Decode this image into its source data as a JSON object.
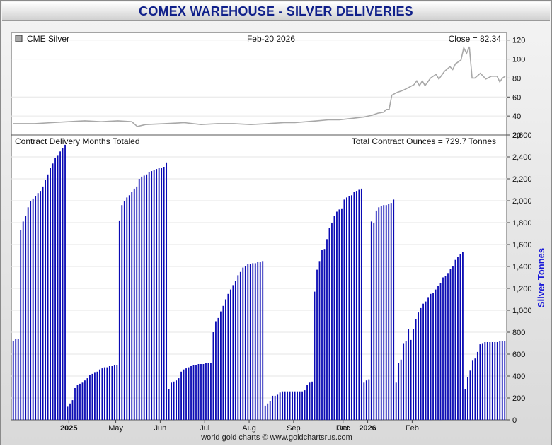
{
  "header": {
    "title": "COMEX WAREHOUSE - SILVER DELIVERIES"
  },
  "footer": {
    "credit": "world gold charts © www.goldchartsrus.com"
  },
  "colors": {
    "bar": "#0a0ab4",
    "price_line": "#a8a8a8",
    "title": "#10208a",
    "ylabel": "#1818d8"
  },
  "chart_data": [
    {
      "type": "line",
      "legend": "CME Silver",
      "date_label": "Feb-20  2026",
      "close_label": "Close = 82.34",
      "yticks": [
        20,
        40,
        60,
        80,
        100,
        120
      ],
      "ylim": [
        20,
        128
      ],
      "x_index_range": [
        0,
        174
      ],
      "grid": true,
      "points": [
        [
          0,
          32
        ],
        [
          8,
          32
        ],
        [
          14,
          33
        ],
        [
          20,
          34
        ],
        [
          26,
          35
        ],
        [
          32,
          34
        ],
        [
          38,
          35
        ],
        [
          43,
          34
        ],
        [
          45,
          29
        ],
        [
          48,
          31
        ],
        [
          55,
          32
        ],
        [
          62,
          33
        ],
        [
          68,
          31
        ],
        [
          74,
          32
        ],
        [
          80,
          32
        ],
        [
          86,
          31
        ],
        [
          92,
          32
        ],
        [
          98,
          33
        ],
        [
          102,
          33
        ],
        [
          106,
          34
        ],
        [
          110,
          35
        ],
        [
          114,
          36
        ],
        [
          118,
          36
        ],
        [
          121,
          37
        ],
        [
          124,
          38
        ],
        [
          127,
          39
        ],
        [
          130,
          41
        ],
        [
          132,
          43
        ],
        [
          134,
          44
        ],
        [
          135,
          47
        ],
        [
          136,
          47
        ],
        [
          137,
          62
        ],
        [
          139,
          65
        ],
        [
          141,
          67
        ],
        [
          143,
          70
        ],
        [
          145,
          73
        ],
        [
          146,
          77
        ],
        [
          147,
          72
        ],
        [
          148,
          77
        ],
        [
          149,
          72
        ],
        [
          151,
          80
        ],
        [
          153,
          84
        ],
        [
          154,
          79
        ],
        [
          156,
          87
        ],
        [
          158,
          92
        ],
        [
          159,
          89
        ],
        [
          160,
          95
        ],
        [
          162,
          99
        ],
        [
          163,
          112
        ],
        [
          164,
          106
        ],
        [
          165,
          113
        ],
        [
          166,
          80
        ],
        [
          167,
          80
        ],
        [
          169,
          85
        ],
        [
          171,
          79
        ],
        [
          173,
          82
        ],
        [
          175,
          82
        ],
        [
          176,
          76
        ],
        [
          177,
          80
        ],
        [
          178,
          82
        ]
      ]
    },
    {
      "type": "bar",
      "title": "Contract Delivery Months Totaled",
      "total_label": "Total Contract Ounces = 729.7 Tonnes",
      "ylabel": "Silver Tonnes",
      "ylim": [
        0,
        2600
      ],
      "yticks": [
        0,
        200,
        400,
        600,
        800,
        "1,000",
        "1,200",
        "1,400",
        "1,600",
        "1,800",
        "2,000",
        "2,200",
        "2,400",
        "2,600"
      ],
      "x_month_ticks": [
        {
          "label": "2025",
          "index": 23,
          "bold": true
        },
        {
          "label": "May",
          "index": 42,
          "bold": false
        },
        {
          "label": "Jun",
          "index": 60,
          "bold": false
        },
        {
          "label": "Jul",
          "index": 78,
          "bold": false
        },
        {
          "label": "Aug",
          "index": 96,
          "bold": false
        },
        {
          "label": "Sep",
          "index": 114,
          "bold": false
        },
        {
          "label": "Oct",
          "index": 134,
          "bold": false
        },
        {
          "label": "Dec",
          "index": 134,
          "bold": false
        },
        {
          "label": "2026",
          "index": 144,
          "bold": true
        },
        {
          "label": "Feb",
          "index": 162,
          "bold": false
        }
      ],
      "grid": true,
      "values": [
        720,
        740,
        740,
        1730,
        1810,
        1860,
        1940,
        2000,
        2020,
        2040,
        2070,
        2090,
        2130,
        2190,
        2240,
        2300,
        2340,
        2390,
        2410,
        2450,
        2480,
        2510,
        120,
        150,
        180,
        290,
        320,
        330,
        340,
        360,
        380,
        410,
        420,
        430,
        440,
        460,
        470,
        480,
        480,
        490,
        490,
        500,
        500,
        1820,
        1960,
        2000,
        2030,
        2050,
        2080,
        2110,
        2130,
        2200,
        2220,
        2230,
        2240,
        2260,
        2270,
        2280,
        2290,
        2300,
        2300,
        2310,
        2350,
        280,
        340,
        350,
        360,
        380,
        440,
        460,
        470,
        480,
        490,
        500,
        500,
        510,
        510,
        510,
        520,
        520,
        520,
        800,
        900,
        930,
        990,
        1040,
        1100,
        1150,
        1190,
        1230,
        1270,
        1320,
        1350,
        1390,
        1400,
        1420,
        1420,
        1430,
        1430,
        1440,
        1440,
        1450,
        130,
        150,
        170,
        220,
        220,
        230,
        250,
        260,
        260,
        260,
        260,
        260,
        260,
        260,
        260,
        260,
        270,
        320,
        340,
        350,
        1170,
        1370,
        1450,
        1550,
        1560,
        1650,
        1750,
        1800,
        1860,
        1900,
        1920,
        1930,
        2010,
        2030,
        2040,
        2050,
        2080,
        2090,
        2100,
        2110,
        340,
        360,
        370,
        1810,
        1800,
        1910,
        1940,
        1950,
        1960,
        1960,
        1970,
        1980,
        2010,
        340,
        520,
        550,
        700,
        720,
        830,
        730,
        830,
        920,
        980,
        1020,
        1060,
        1080,
        1120,
        1150,
        1160,
        1190,
        1220,
        1250,
        1300,
        1310,
        1340,
        1380,
        1400,
        1460,
        1490,
        1510,
        1530,
        280,
        390,
        450,
        540,
        560,
        620,
        690,
        700,
        710,
        710,
        710,
        710,
        710,
        710,
        720,
        720,
        720
      ]
    }
  ]
}
